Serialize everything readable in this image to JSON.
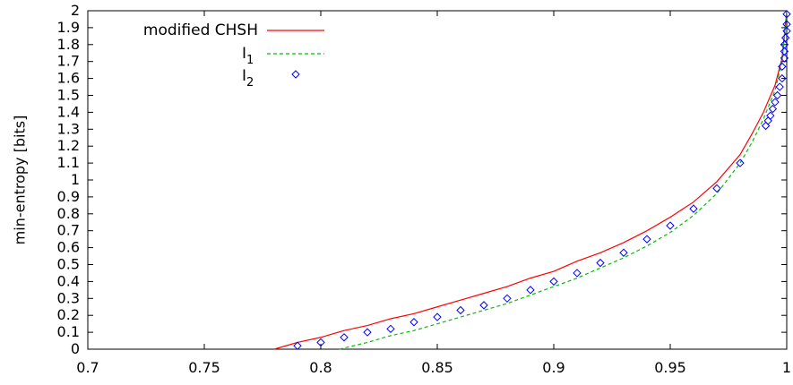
{
  "chart_data": {
    "type": "line",
    "title": "",
    "xlabel": "",
    "ylabel": "min-entropy [bits]",
    "xlim": [
      0.7,
      1.0
    ],
    "ylim": [
      0,
      2
    ],
    "xticks": [
      0.7,
      0.75,
      0.8,
      0.85,
      0.9,
      0.95,
      1.0
    ],
    "xtick_labels": [
      "0.7",
      "0.75",
      "0.8",
      "0.85",
      "0.9",
      "0.95",
      "1"
    ],
    "yticks": [
      0,
      0.1,
      0.2,
      0.3,
      0.4,
      0.5,
      0.6,
      0.7,
      0.8,
      0.9,
      1.0,
      1.1,
      1.2,
      1.3,
      1.4,
      1.5,
      1.6,
      1.7,
      1.8,
      1.9,
      2.0
    ],
    "ytick_labels": [
      "0",
      "0.1",
      "0.2",
      "0.3",
      "0.4",
      "0.5",
      "0.6",
      "0.7",
      "0.8",
      "0.9",
      "1",
      "1.1",
      "1.2",
      "1.3",
      "1.4",
      "1.5",
      "1.6",
      "1.7",
      "1.8",
      "1.9",
      "2"
    ],
    "grid": false,
    "legend_position": "top-left",
    "series": [
      {
        "name": "modified CHSH",
        "style": "solid-line",
        "color": "#ff0000",
        "x": [
          0.78,
          0.79,
          0.8,
          0.81,
          0.82,
          0.83,
          0.84,
          0.85,
          0.86,
          0.87,
          0.88,
          0.89,
          0.9,
          0.91,
          0.92,
          0.93,
          0.94,
          0.95,
          0.96,
          0.97,
          0.98,
          0.985,
          0.99,
          0.995,
          0.998,
          1.0
        ],
        "y": [
          0.0,
          0.04,
          0.07,
          0.11,
          0.14,
          0.18,
          0.21,
          0.25,
          0.29,
          0.33,
          0.37,
          0.42,
          0.46,
          0.52,
          0.57,
          0.63,
          0.7,
          0.78,
          0.87,
          0.99,
          1.15,
          1.27,
          1.4,
          1.56,
          1.72,
          2.0
        ]
      },
      {
        "name": "I_1",
        "style": "dashed-line",
        "color": "#00c000",
        "x": [
          0.808,
          0.82,
          0.83,
          0.84,
          0.85,
          0.86,
          0.87,
          0.88,
          0.89,
          0.9,
          0.91,
          0.92,
          0.93,
          0.94,
          0.95,
          0.96,
          0.97,
          0.98,
          0.985,
          0.99,
          0.995,
          0.998,
          1.0
        ],
        "y": [
          0.0,
          0.04,
          0.08,
          0.11,
          0.15,
          0.19,
          0.23,
          0.27,
          0.32,
          0.37,
          0.42,
          0.48,
          0.54,
          0.61,
          0.69,
          0.79,
          0.92,
          1.1,
          1.22,
          1.36,
          1.53,
          1.7,
          2.0
        ]
      },
      {
        "name": "I_2",
        "style": "diamond-markers",
        "color": "#0000ff",
        "x": [
          0.79,
          0.8,
          0.81,
          0.82,
          0.83,
          0.84,
          0.85,
          0.86,
          0.87,
          0.88,
          0.89,
          0.9,
          0.91,
          0.92,
          0.93,
          0.94,
          0.95,
          0.96,
          0.97,
          0.98,
          0.991,
          0.992,
          0.993,
          0.994,
          0.995,
          0.996,
          0.997,
          0.998,
          0.998,
          0.999,
          0.999,
          0.999,
          0.9995,
          1.0,
          1.0,
          1.0
        ],
        "y": [
          0.02,
          0.04,
          0.07,
          0.1,
          0.12,
          0.16,
          0.19,
          0.23,
          0.26,
          0.3,
          0.35,
          0.4,
          0.45,
          0.51,
          0.57,
          0.65,
          0.73,
          0.83,
          0.95,
          1.1,
          1.32,
          1.35,
          1.38,
          1.42,
          1.46,
          1.5,
          1.55,
          1.6,
          1.67,
          1.72,
          1.76,
          1.8,
          1.84,
          1.88,
          1.92,
          1.98
        ]
      }
    ],
    "legend": [
      {
        "label_main": "modified CHSH",
        "label_sub": ""
      },
      {
        "label_main": "I",
        "label_sub": "1"
      },
      {
        "label_main": "I",
        "label_sub": "2"
      }
    ]
  }
}
